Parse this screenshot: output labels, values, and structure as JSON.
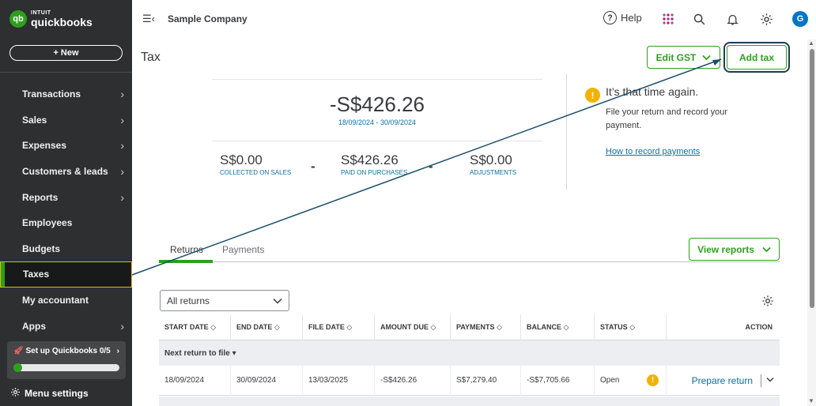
{
  "brand": {
    "top": "INTUIT",
    "bottom": "quickbooks",
    "mark": "qb"
  },
  "sidebar": {
    "new_label": "+ New",
    "items": [
      {
        "label": "Transactions",
        "chevron": "›"
      },
      {
        "label": "Sales",
        "chevron": "›"
      },
      {
        "label": "Expenses",
        "chevron": "›"
      },
      {
        "label": "Customers & leads",
        "chevron": "›"
      },
      {
        "label": "Reports",
        "chevron": "›"
      },
      {
        "label": "Employees",
        "chevron": ""
      },
      {
        "label": "Budgets",
        "chevron": ""
      },
      {
        "label": "Taxes",
        "chevron": ""
      },
      {
        "label": "My accountant",
        "chevron": ""
      },
      {
        "label": "Apps",
        "chevron": "›"
      }
    ],
    "active_item": "Taxes",
    "setup": {
      "label": "Set up Quickbooks 0/5",
      "chevron": "›",
      "progress": 0
    },
    "menu_settings": "Menu settings"
  },
  "topbar": {
    "company": "Sample Company",
    "help": "Help",
    "help_glyph": "?",
    "avatar": "G"
  },
  "page": {
    "title": "Tax",
    "edit_gst": "Edit GST",
    "add_tax": "Add tax"
  },
  "summary": {
    "amount": "-S$426.26",
    "period": "18/09/2024 - 30/09/2024",
    "collected_amount": "S$0.00",
    "collected_label": "COLLECTED ON SALES",
    "paid_amount": "S$426.26",
    "paid_label": "PAID ON PURCHASES",
    "adjust_amount": "S$0.00",
    "adjust_label": "ADJUSTMENTS",
    "minus": "-"
  },
  "reminder": {
    "title": "It’s that time again.",
    "text": "File your return and record your payment.",
    "link": "How to record payments",
    "icon_glyph": "!"
  },
  "tabs": {
    "returns": "Returns",
    "payments": "Payments",
    "view_reports": "View reports"
  },
  "filter": {
    "value": "All returns"
  },
  "table": {
    "headers": [
      "START DATE",
      "END DATE",
      "FILE DATE",
      "AMOUNT DUE",
      "PAYMENTS",
      "BALANCE",
      "STATUS",
      "ACTION"
    ],
    "sort_glyph": "◇",
    "group_label": "Next return to file",
    "group_caret": "▾",
    "rows": [
      {
        "start": "18/09/2024",
        "end": "30/09/2024",
        "file": "13/03/2025",
        "amount_due": "-S$426.26",
        "payments": "S$7,279.40",
        "balance": "-S$7,705.66",
        "status": "Open",
        "action": "Prepare return"
      }
    ]
  },
  "colors": {
    "sidebar_bg": "#2d2f31",
    "brand_green": "#2ca01c",
    "link_blue": "#0d6ea3",
    "warning": "#f2b200",
    "highlight": "#e6b800",
    "annotation": "#1b4d6b"
  }
}
